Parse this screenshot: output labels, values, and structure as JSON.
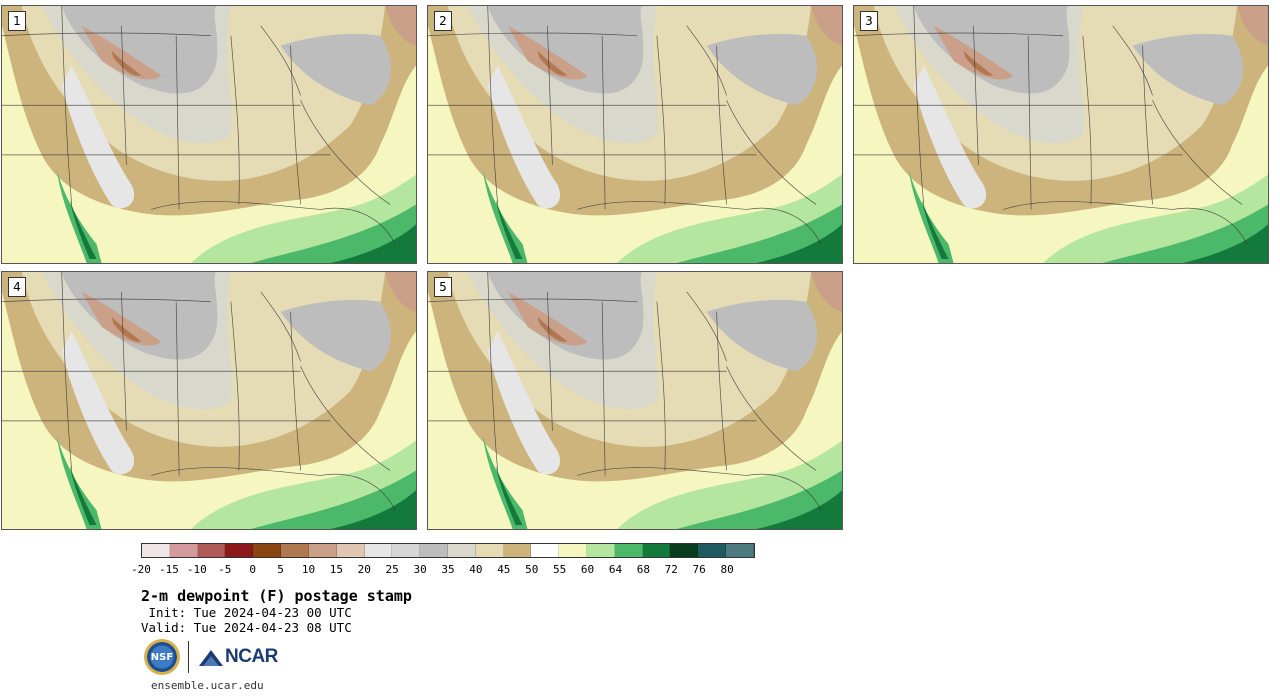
{
  "panels": [
    {
      "label": "1"
    },
    {
      "label": "2"
    },
    {
      "label": "3"
    },
    {
      "label": "4"
    },
    {
      "label": "5"
    }
  ],
  "colorbar": {
    "colors": [
      "#f1e6e6",
      "#d29a9a",
      "#b05a5a",
      "#8c1a1a",
      "#8b4513",
      "#b07850",
      "#caa088",
      "#e2c6b4",
      "#e6e6e6",
      "#d6d6d6",
      "#bdbdbd",
      "#d8d8cc",
      "#e5dcb6",
      "#cdb47d",
      "#ffffff",
      "#f6f6c0",
      "#b4e6a0",
      "#4cb86a",
      "#147a3c",
      "#0a3c20",
      "#1e5a60",
      "#4c7a80"
    ],
    "ticks": [
      "-20",
      "-15",
      "-10",
      "-5",
      "0",
      "5",
      "10",
      "15",
      "20",
      "25",
      "30",
      "35",
      "40",
      "45",
      "50",
      "55",
      "60",
      "64",
      "68",
      "72",
      "76",
      "80"
    ]
  },
  "title": "2-m dewpoint (F) postage stamp",
  "init": " Init: Tue 2024-04-23 00 UTC",
  "valid": "Valid: Tue 2024-04-23 08 UTC",
  "logos": {
    "nsf": "NSF",
    "ncar": "NCAR"
  },
  "site": "ensemble.ucar.edu"
}
